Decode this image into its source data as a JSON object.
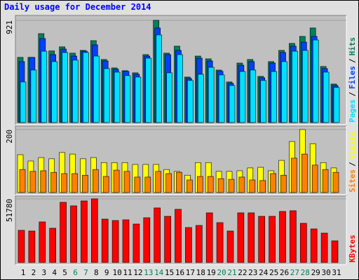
{
  "chart_data": [
    {
      "type": "bar",
      "title": "Daily usage for December 2014",
      "ylim": [
        0,
        921
      ],
      "yticks": [
        921
      ],
      "legend_separator": "/",
      "series": [
        {
          "name": "Hits",
          "color": "#00805c",
          "values": [
            587,
            587,
            801,
            645,
            682,
            625,
            650,
            738,
            568,
            492,
            467,
            448,
            612,
            921,
            625,
            688,
            410,
            599,
            574,
            473,
            366,
            536,
            568,
            416,
            549,
            650,
            713,
            776,
            852,
            505,
            347
          ]
        },
        {
          "name": "Files",
          "color": "#0040ff",
          "values": [
            549,
            587,
            757,
            612,
            662,
            599,
            643,
            700,
            555,
            480,
            461,
            435,
            599,
            852,
            612,
            650,
            397,
            580,
            555,
            461,
            353,
            517,
            549,
            404,
            536,
            631,
            688,
            725,
            776,
            486,
            334
          ]
        },
        {
          "name": "Pages",
          "color": "#00e0ff",
          "values": [
            366,
            473,
            643,
            549,
            631,
            562,
            631,
            599,
            486,
            454,
            423,
            410,
            580,
            789,
            448,
            612,
            379,
            435,
            498,
            429,
            334,
            460,
            473,
            379,
            460,
            549,
            643,
            650,
            744,
            454,
            316
          ]
        }
      ]
    },
    {
      "type": "bar",
      "ylim": [
        0,
        200
      ],
      "yticks": [
        200
      ],
      "legend_separator": "/",
      "series": [
        {
          "name": "Visits",
          "color": "#ffff00",
          "values": [
            120,
            100,
            111,
            107,
            127,
            122,
            107,
            111,
            95,
            95,
            95,
            89,
            89,
            89,
            73,
            67,
            55,
            95,
            95,
            67,
            67,
            69,
            78,
            80,
            69,
            102,
            162,
            200,
            155,
            95,
            78
          ]
        },
        {
          "name": "Sites",
          "color": "#ff8000",
          "values": [
            73,
            67,
            69,
            64,
            60,
            60,
            55,
            73,
            51,
            71,
            67,
            49,
            49,
            67,
            60,
            64,
            40,
            51,
            51,
            44,
            42,
            49,
            40,
            38,
            60,
            55,
            109,
            122,
            87,
            73,
            64
          ]
        }
      ]
    },
    {
      "type": "bar",
      "ylim": [
        0,
        51780
      ],
      "yticks": [
        51780
      ],
      "categories": [
        "1",
        "2",
        "3",
        "4",
        "5",
        "6",
        "7",
        "8",
        "9",
        "10",
        "11",
        "12",
        "13",
        "14",
        "15",
        "16",
        "17",
        "18",
        "19",
        "20",
        "21",
        "22",
        "23",
        "24",
        "25",
        "26",
        "27",
        "28",
        "29",
        "30",
        "31"
      ],
      "category_colors": [
        "#000000",
        "#000000",
        "#000000",
        "#000000",
        "#000000",
        "#00805c",
        "#00805c",
        "#000000",
        "#000000",
        "#000000",
        "#000000",
        "#000000",
        "#00805c",
        "#00805c",
        "#000000",
        "#000000",
        "#000000",
        "#000000",
        "#000000",
        "#00805c",
        "#00805c",
        "#000000",
        "#000000",
        "#000000",
        "#000000",
        "#000000",
        "#00805c",
        "#00805c",
        "#000000",
        "#000000",
        "#000000"
      ],
      "series": [
        {
          "name": "KBytes",
          "color": "#ff0000",
          "values": [
            26174,
            25605,
            33000,
            27881,
            48934,
            46089,
            50072,
            51780,
            35278,
            34140,
            34709,
            31295,
            36416,
            44382,
            37554,
            43244,
            28450,
            30157,
            40399,
            32433,
            25605,
            40399,
            40399,
            37554,
            37554,
            41537,
            42106,
            31864,
            27312,
            23898,
            17637
          ]
        }
      ]
    }
  ]
}
